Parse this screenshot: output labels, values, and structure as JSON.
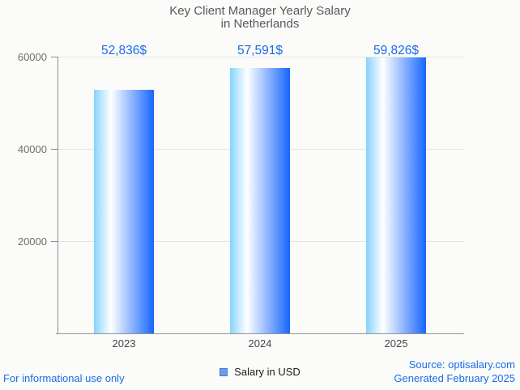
{
  "title": {
    "line1": "Key Client Manager Yearly Salary",
    "line2": "in Netherlands"
  },
  "chart_data": {
    "type": "bar",
    "title": "Key Client Manager Yearly Salary in Netherlands",
    "categories": [
      "2023",
      "2024",
      "2025"
    ],
    "values": [
      52836,
      57591,
      59826
    ],
    "value_labels": [
      "52,836$",
      "57,591$",
      "59,826$"
    ],
    "series": [
      {
        "name": "Salary in USD",
        "values": [
          52836,
          57591,
          59826
        ]
      }
    ],
    "xlabel": "",
    "ylabel": "",
    "ylim": [
      0,
      60000
    ],
    "yticks": [
      20000,
      40000,
      60000
    ],
    "ytick_labels": [
      "20000",
      "40000",
      "60000"
    ],
    "grid": true,
    "legend_position": "bottom",
    "colors": {
      "bar_gradient_left": "#85d3fd",
      "bar_gradient_mid": "#ffffff",
      "bar_gradient_right": "#1766fd",
      "value_label": "#1a6ce8",
      "gridline": "#e4e4e4",
      "axis": "#959595"
    }
  },
  "legend": {
    "label": "Salary in USD",
    "swatch_fill": "#6d9eeb",
    "swatch_border": "#4379d6"
  },
  "footer": {
    "left": "For informational use only",
    "source": "Source: optisalary.com",
    "generated": "Generated February 2025",
    "text_color": "#1a6ce8"
  }
}
